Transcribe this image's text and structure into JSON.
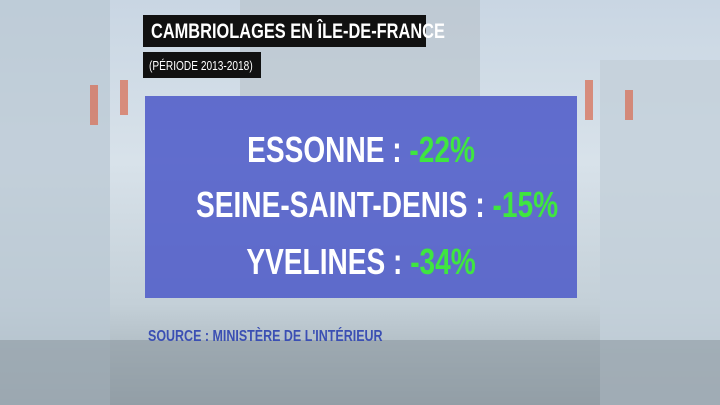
{
  "header": {
    "title": "CAMBRIOLAGES EN ÎLE-DE-FRANCE",
    "subtitle": "(PÉRIODE 2013-2018)"
  },
  "items": [
    {
      "label": "ESSONNE :",
      "value": "-22%"
    },
    {
      "label": "SEINE-SAINT-DENIS :",
      "value": "-15%"
    },
    {
      "label": "YVELINES :",
      "value": "-34%"
    }
  ],
  "source": "SOURCE : MINISTÈRE DE L'INTÉRIEUR"
}
